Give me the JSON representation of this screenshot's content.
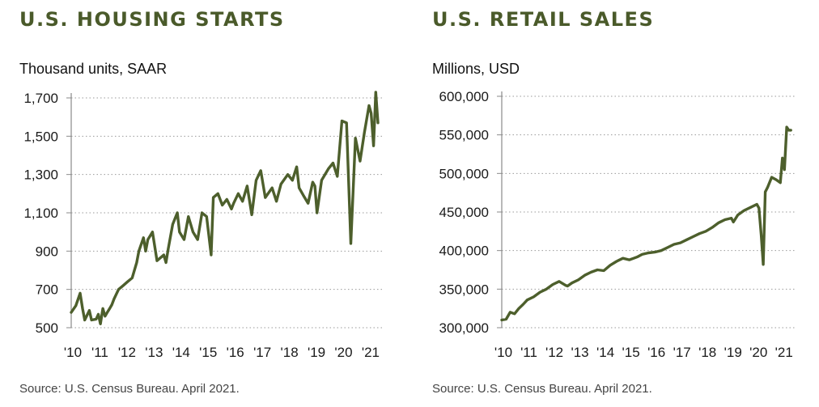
{
  "colors": {
    "line": "#4d5f2c",
    "title": "#4a5a2a",
    "grid": "#9a9a9a"
  },
  "chart_data": [
    {
      "type": "line",
      "title": "U.S. HOUSING STARTS",
      "ylabel": "Thousand units, SAAR",
      "source": "Source: U.S. Census Bureau. April 2021.",
      "ylim": [
        500,
        1700
      ],
      "yticks": [
        500,
        700,
        900,
        1100,
        1300,
        1500,
        1700
      ],
      "ytick_labels": [
        "500",
        "700",
        "900",
        "1,100",
        "1,300",
        "1,500",
        "1,700"
      ],
      "xlim": [
        2010,
        2021.42
      ],
      "xticks": [
        2010,
        2011,
        2012,
        2013,
        2014,
        2015,
        2016,
        2017,
        2018,
        2019,
        2020,
        2021
      ],
      "xtick_labels": [
        "'10",
        "'11",
        "'12",
        "'13",
        "'14",
        "'15",
        "'16",
        "'17",
        "'18",
        "'19",
        "'20",
        "'21"
      ],
      "grid": "horizontal dotted",
      "x": [
        2010.0,
        2010.17,
        2010.33,
        2010.42,
        2010.5,
        2010.67,
        2010.75,
        2010.92,
        2011.0,
        2011.08,
        2011.17,
        2011.25,
        2011.33,
        2011.42,
        2011.5,
        2011.58,
        2011.75,
        2011.92,
        2012.08,
        2012.25,
        2012.42,
        2012.5,
        2012.67,
        2012.75,
        2012.83,
        2013.0,
        2013.17,
        2013.42,
        2013.5,
        2013.58,
        2013.75,
        2013.92,
        2014.0,
        2014.17,
        2014.33,
        2014.5,
        2014.67,
        2014.83,
        2015.0,
        2015.17,
        2015.25,
        2015.42,
        2015.58,
        2015.75,
        2015.92,
        2016.0,
        2016.17,
        2016.33,
        2016.5,
        2016.67,
        2016.83,
        2017.0,
        2017.17,
        2017.42,
        2017.58,
        2017.75,
        2018.0,
        2018.17,
        2018.33,
        2018.42,
        2018.58,
        2018.75,
        2018.92,
        2019.0,
        2019.08,
        2019.25,
        2019.5,
        2019.67,
        2019.83,
        2020.0,
        2020.17,
        2020.33,
        2020.5,
        2020.67,
        2020.83,
        2021.0,
        2021.08,
        2021.17,
        2021.25,
        2021.33
      ],
      "values": [
        580,
        615,
        680,
        600,
        540,
        590,
        540,
        545,
        570,
        520,
        600,
        560,
        580,
        600,
        620,
        650,
        700,
        720,
        740,
        760,
        840,
        900,
        970,
        900,
        960,
        1000,
        850,
        880,
        840,
        910,
        1040,
        1100,
        1000,
        960,
        1080,
        1000,
        960,
        1100,
        1080,
        880,
        1180,
        1200,
        1140,
        1170,
        1120,
        1150,
        1200,
        1160,
        1240,
        1090,
        1270,
        1320,
        1180,
        1230,
        1160,
        1250,
        1300,
        1270,
        1340,
        1230,
        1190,
        1150,
        1260,
        1240,
        1100,
        1270,
        1330,
        1360,
        1290,
        1580,
        1570,
        940,
        1490,
        1370,
        1520,
        1660,
        1620,
        1450,
        1730,
        1570
      ]
    },
    {
      "type": "line",
      "title": "U.S. RETAIL SALES",
      "ylabel": "Millions, USD",
      "source": "Source: U.S. Census Bureau. April 2021.",
      "ylim": [
        300000,
        600000
      ],
      "yticks": [
        300000,
        350000,
        400000,
        450000,
        500000,
        550000,
        600000
      ],
      "ytick_labels": [
        "300,000",
        "350,000",
        "400,000",
        "450,000",
        "500,000",
        "550,000",
        "600,000"
      ],
      "xlim": [
        2010,
        2021.42
      ],
      "xticks": [
        2010,
        2011,
        2012,
        2013,
        2014,
        2015,
        2016,
        2017,
        2018,
        2019,
        2020,
        2021
      ],
      "xtick_labels": [
        "'10",
        "'11",
        "'12",
        "'13",
        "'14",
        "'15",
        "'16",
        "'17",
        "'18",
        "'19",
        "'20",
        "'21"
      ],
      "grid": "horizontal dotted",
      "x": [
        2010.0,
        2010.17,
        2010.33,
        2010.5,
        2010.67,
        2010.83,
        2011.0,
        2011.25,
        2011.5,
        2011.75,
        2012.0,
        2012.25,
        2012.5,
        2012.58,
        2012.75,
        2013.0,
        2013.25,
        2013.5,
        2013.75,
        2014.0,
        2014.25,
        2014.5,
        2014.75,
        2015.0,
        2015.17,
        2015.33,
        2015.5,
        2015.75,
        2016.0,
        2016.25,
        2016.5,
        2016.75,
        2017.0,
        2017.25,
        2017.5,
        2017.75,
        2018.0,
        2018.25,
        2018.5,
        2018.75,
        2019.0,
        2019.08,
        2019.25,
        2019.5,
        2019.75,
        2020.0,
        2020.08,
        2020.17,
        2020.25,
        2020.33,
        2020.42,
        2020.58,
        2020.75,
        2020.92,
        2021.0,
        2021.08,
        2021.17,
        2021.25,
        2021.33
      ],
      "values": [
        310000,
        311000,
        320000,
        318000,
        325000,
        330000,
        336000,
        340000,
        346000,
        350000,
        356000,
        360000,
        355000,
        354000,
        358000,
        362000,
        368000,
        372000,
        375000,
        374000,
        381000,
        386000,
        390000,
        388000,
        390000,
        392000,
        395000,
        397000,
        398000,
        400000,
        404000,
        408000,
        410000,
        414000,
        418000,
        422000,
        425000,
        430000,
        436000,
        440000,
        442000,
        437000,
        446000,
        452000,
        456000,
        460000,
        455000,
        420000,
        382000,
        476000,
        482000,
        495000,
        492000,
        488000,
        520000,
        505000,
        560000,
        556000,
        556000
      ]
    }
  ]
}
